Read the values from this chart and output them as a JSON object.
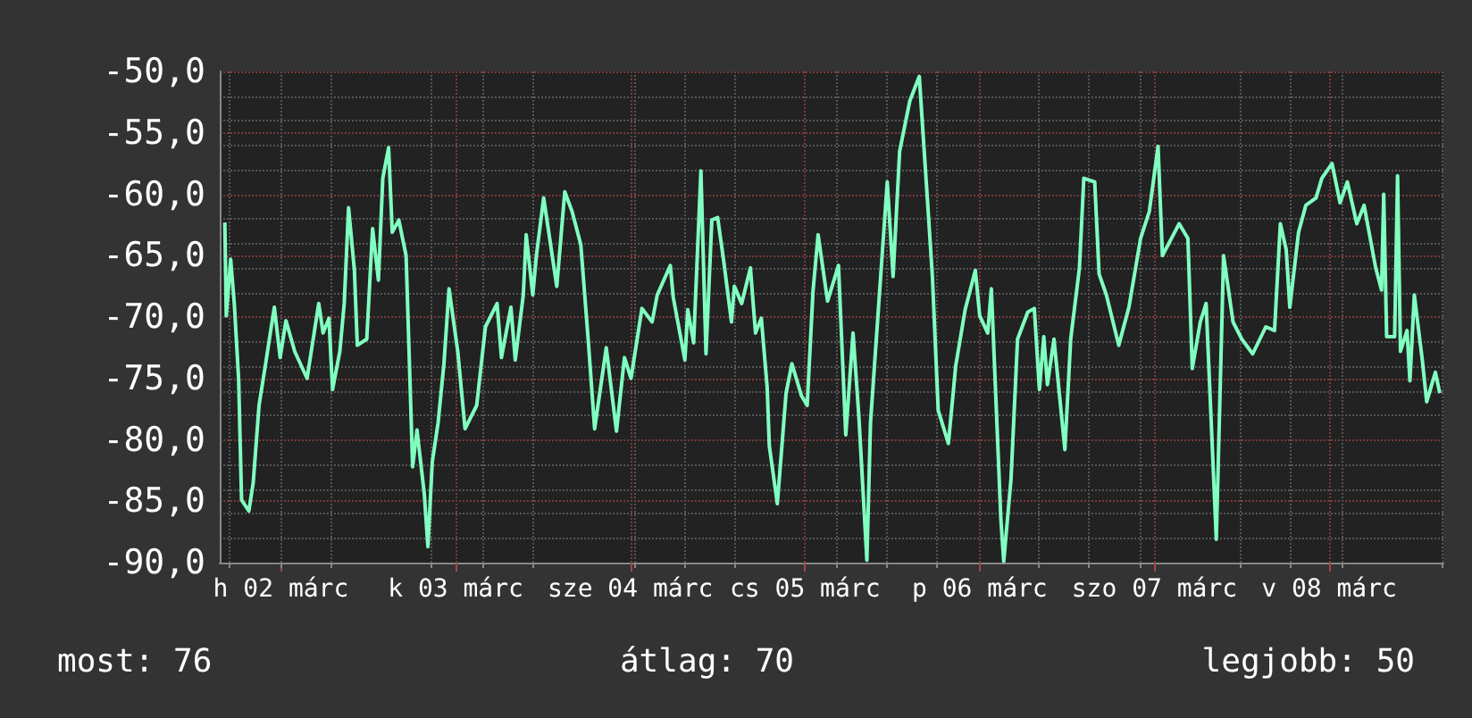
{
  "chart_data": {
    "type": "line",
    "grid": true,
    "marker": "none",
    "line_style": "solid",
    "xlim": [
      "--03-02T03:36",
      "--03-09T03:42"
    ],
    "xticks": [
      {
        "value": "--03-02T12:00",
        "label": "h 02 márc"
      },
      {
        "value": "--03-03T12:00",
        "label": "k 03 márc"
      },
      {
        "value": "--03-04T12:00",
        "label": "sze 04 márc"
      },
      {
        "value": "--03-05T12:00",
        "label": "cs 05 márc"
      },
      {
        "value": "--03-06T12:00",
        "label": "p 06 márc"
      },
      {
        "value": "--03-07T12:00",
        "label": "szo 07 márc"
      },
      {
        "value": "--03-08T12:00",
        "label": "v 08 márc"
      }
    ],
    "ylim": [
      -90,
      -50
    ],
    "yticks": [
      {
        "value": -50,
        "label": "-50,0"
      },
      {
        "value": -55,
        "label": "-55,0"
      },
      {
        "value": -60,
        "label": "-60,0"
      },
      {
        "value": -65,
        "label": "-65,0"
      },
      {
        "value": -70,
        "label": "-70,0"
      },
      {
        "value": -75,
        "label": "-75,0"
      },
      {
        "value": -80,
        "label": "-80,0"
      },
      {
        "value": -85,
        "label": "-85,0"
      },
      {
        "value": -90,
        "label": "-90,0"
      }
    ],
    "annotations": [
      "most: 76",
      "átlag: 70",
      "legjobb: 50"
    ],
    "series": [
      {
        "color": "#80ffc0",
        "x": [
          "--03-02T04:18",
          "--03-02T04:30",
          "--03-02T05:06",
          "--03-02T05:36",
          "--03-02T06:12",
          "--03-02T06:36",
          "--03-02T07:36",
          "--03-02T08:12",
          "--03-02T09:00",
          "--03-02T09:48",
          "--03-02T11:06",
          "--03-02T11:54",
          "--03-02T12:42",
          "--03-02T13:54",
          "--03-02T15:36",
          "--03-02T17:12",
          "--03-02T17:48",
          "--03-02T18:36",
          "--03-02T19:06",
          "--03-02T20:06",
          "--03-02T20:42",
          "--03-02T21:18",
          "--03-02T22:06",
          "--03-02T22:30",
          "--03-02T23:48",
          "--03-03T00:36",
          "--03-03T01:24",
          "--03-03T02:00",
          "--03-03T02:48",
          "--03-03T03:18",
          "--03-03T04:12",
          "--03-03T05:12",
          "--03-03T06:06",
          "--03-03T06:42",
          "--03-03T07:42",
          "--03-03T08:12",
          "--03-03T08:48",
          "--03-03T09:36",
          "--03-03T10:24",
          "--03-03T11:06",
          "--03-03T12:18",
          "--03-03T13:18",
          "--03-03T14:54",
          "--03-03T16:06",
          "--03-03T17:42",
          "--03-03T18:18",
          "--03-03T19:36",
          "--03-03T20:12",
          "--03-03T21:18",
          "--03-03T21:42",
          "--03-03T22:36",
          "--03-03T23:06",
          "--03-04T00:06",
          "--03-04T01:54",
          "--03-04T03:00",
          "--03-04T04:00",
          "--03-04T05:12",
          "--03-04T06:12",
          "--03-04T07:06",
          "--03-04T08:42",
          "--03-04T10:06",
          "--03-04T11:12",
          "--03-04T12:06",
          "--03-04T13:36",
          "--03-04T15:00",
          "--03-04T15:42",
          "--03-04T17:30",
          "--03-04T17:54",
          "--03-04T19:30",
          "--03-04T19:54",
          "--03-04T20:42",
          "--03-04T21:42",
          "--03-04T22:24",
          "--03-04T23:12",
          "--03-05T00:00",
          "--03-05T00:48",
          "--03-05T01:54",
          "--03-05T02:18",
          "--03-05T03:18",
          "--03-05T04:30",
          "--03-05T05:12",
          "--03-05T06:00",
          "--03-05T06:48",
          "--03-05T07:06",
          "--03-05T08:12",
          "--03-05T09:24",
          "--03-05T10:12",
          "--03-05T11:30",
          "--03-05T12:18",
          "--03-05T13:06",
          "--03-05T13:48",
          "--03-05T15:06",
          "--03-05T16:36",
          "--03-05T17:36",
          "--03-05T18:36",
          "--03-05T19:24",
          "--03-05T20:30",
          "--03-05T21:00",
          "--03-05T22:06",
          "--03-05T23:18",
          "--03-06T00:06",
          "--03-06T01:00",
          "--03-06T02:24",
          "--03-06T03:42",
          "--03-06T04:54",
          "--03-06T05:30",
          "--03-06T06:18",
          "--03-06T07:42",
          "--03-06T08:42",
          "--03-06T10:00",
          "--03-06T11:24",
          "--03-06T12:00",
          "--03-06T13:06",
          "--03-06T13:36",
          "--03-06T14:54",
          "--03-06T15:18",
          "--03-06T16:18",
          "--03-06T17:12",
          "--03-06T18:36",
          "--03-06T19:30",
          "--03-06T20:12",
          "--03-06T20:48",
          "--03-06T21:18",
          "--03-06T22:12",
          "--03-06T23:42",
          "--03-07T00:30",
          "--03-07T01:42",
          "--03-07T02:18",
          "--03-07T03:48",
          "--03-07T04:24",
          "--03-07T05:24",
          "--03-07T07:06",
          "--03-07T08:30",
          "--03-07T10:06",
          "--03-07T11:18",
          "--03-07T12:30",
          "--03-07T13:06",
          "--03-07T14:36",
          "--03-07T15:24",
          "--03-07T16:36",
          "--03-07T17:12",
          "--03-07T18:18",
          "--03-07T19:06",
          "--03-07T20:30",
          "--03-07T21:30",
          "--03-07T22:48",
          "--03-08T00:00",
          "--03-08T01:30",
          "--03-08T03:18",
          "--03-08T04:30",
          "--03-08T05:18",
          "--03-08T06:06",
          "--03-08T06:36",
          "--03-08T07:48",
          "--03-08T08:48",
          "--03-08T10:12",
          "--03-08T11:00",
          "--03-08T12:24",
          "--03-08T13:30",
          "--03-08T14:30",
          "--03-08T15:48",
          "--03-08T16:48",
          "--03-08T18:24",
          "--03-08T19:12",
          "--03-08T19:30",
          "--03-08T19:54",
          "--03-08T21:00",
          "--03-08T21:24",
          "--03-08T21:48",
          "--03-08T22:42",
          "--03-08T23:06",
          "--03-08T23:42",
          "--03-09T00:48",
          "--03-09T01:24",
          "--03-09T02:36",
          "--03-09T03:12"
        ],
        "values": [
          -62.3,
          -69.9,
          -65.3,
          -68.9,
          -75.1,
          -84.9,
          -85.8,
          -83.5,
          -77.2,
          -74.2,
          -69.2,
          -73.3,
          -70.3,
          -72.8,
          -75.0,
          -68.9,
          -71.3,
          -70.1,
          -75.9,
          -72.8,
          -68.9,
          -61.1,
          -66.2,
          -72.3,
          -71.8,
          -62.8,
          -67.0,
          -58.7,
          -56.2,
          -63.1,
          -62.1,
          -65.0,
          -82.2,
          -79.2,
          -84.4,
          -88.7,
          -81.8,
          -78.6,
          -73.8,
          -67.7,
          -72.8,
          -79.1,
          -77.2,
          -70.8,
          -68.9,
          -73.3,
          -69.2,
          -73.5,
          -68.2,
          -63.3,
          -68.2,
          -65.0,
          -60.3,
          -67.5,
          -59.8,
          -61.4,
          -64.1,
          -71.7,
          -79.1,
          -72.5,
          -79.3,
          -73.3,
          -75.0,
          -69.3,
          -70.4,
          -68.2,
          -65.8,
          -68.4,
          -73.5,
          -69.4,
          -72.1,
          -58.1,
          -73.0,
          -62.1,
          -61.9,
          -65.3,
          -70.4,
          -67.5,
          -68.9,
          -66.0,
          -71.3,
          -70.1,
          -75.7,
          -80.5,
          -85.2,
          -76.2,
          -73.8,
          -76.4,
          -77.2,
          -67.9,
          -63.3,
          -68.7,
          -65.8,
          -79.6,
          -71.3,
          -78.1,
          -89.8,
          -78.6,
          -69.2,
          -59.0,
          -66.7,
          -56.5,
          -52.4,
          -50.4,
          -61.2,
          -66.7,
          -77.6,
          -80.3,
          -74.0,
          -69.4,
          -66.2,
          -69.9,
          -71.3,
          -67.7,
          -86.4,
          -89.9,
          -83.2,
          -71.8,
          -69.6,
          -69.3,
          -75.9,
          -71.6,
          -75.5,
          -71.8,
          -80.8,
          -71.8,
          -66.0,
          -58.7,
          -59.0,
          -66.5,
          -68.2,
          -72.3,
          -69.2,
          -63.6,
          -61.4,
          -56.1,
          -65.0,
          -63.3,
          -62.4,
          -63.6,
          -74.2,
          -70.4,
          -68.9,
          -88.1,
          -65.0,
          -70.4,
          -71.8,
          -73.0,
          -70.8,
          -71.1,
          -62.4,
          -64.5,
          -69.2,
          -63.1,
          -60.9,
          -60.3,
          -58.7,
          -57.5,
          -60.7,
          -59.0,
          -62.4,
          -60.9,
          -66.0,
          -67.8,
          -60.0,
          -71.6,
          -71.6,
          -58.5,
          -72.8,
          -71.1,
          -75.2,
          -68.2,
          -73.5,
          -76.9,
          -74.5,
          -76.2
        ]
      }
    ]
  }
}
